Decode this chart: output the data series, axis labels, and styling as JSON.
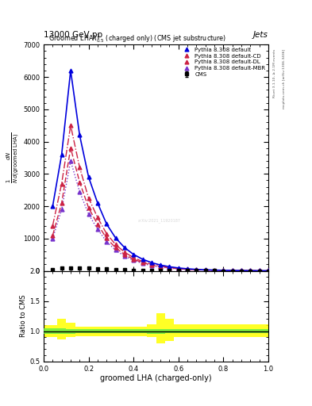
{
  "title_top": "13000 GeV pp",
  "title_right": "Jets",
  "plot_title": "Groomed LHA$\\lambda^{1}_{0.5}$ (charged only) (CMS jet substructure)",
  "xlabel": "groomed LHA (charged-only)",
  "ylabel_ratio": "Ratio to CMS",
  "right_label1": "Rivet 3.1.10, ≥ 2.1M events",
  "right_label2": "mcplots.cern.ch [arXiv:1306.3436]",
  "watermark": "arXiv:2021_11920187",
  "xlim": [
    0,
    1
  ],
  "ylim_main": [
    0,
    7000
  ],
  "ylim_ratio": [
    0.5,
    2.0
  ],
  "x_data": [
    0.04,
    0.08,
    0.12,
    0.16,
    0.2,
    0.24,
    0.28,
    0.32,
    0.36,
    0.4,
    0.44,
    0.48,
    0.52,
    0.56,
    0.6,
    0.64,
    0.68,
    0.72,
    0.76,
    0.8,
    0.84,
    0.88,
    0.92,
    0.96,
    1.0
  ],
  "default_data": [
    2000,
    3600,
    6200,
    4200,
    2900,
    2100,
    1450,
    1020,
    720,
    510,
    360,
    255,
    180,
    128,
    90,
    64,
    46,
    33,
    23,
    17,
    12,
    9,
    6,
    5,
    3
  ],
  "cd_data": [
    1400,
    2700,
    4500,
    3200,
    2250,
    1650,
    1150,
    815,
    578,
    410,
    290,
    205,
    146,
    104,
    74,
    53,
    38,
    27,
    20,
    14,
    10,
    8,
    6,
    4,
    3
  ],
  "dl_data": [
    1100,
    2100,
    3800,
    2750,
    1950,
    1440,
    1010,
    715,
    507,
    360,
    255,
    181,
    129,
    92,
    66,
    47,
    34,
    24,
    18,
    13,
    9,
    7,
    5,
    4,
    3
  ],
  "mbr_data": [
    1000,
    1900,
    3400,
    2450,
    1750,
    1290,
    905,
    642,
    456,
    324,
    230,
    163,
    116,
    83,
    60,
    43,
    31,
    22,
    16,
    12,
    9,
    6,
    5,
    3,
    2
  ],
  "cms_x": [
    0.04,
    0.08,
    0.12,
    0.16,
    0.2,
    0.24,
    0.28,
    0.32,
    0.36,
    0.4,
    0.44,
    0.48,
    0.52,
    0.56,
    0.6,
    0.64,
    0.68,
    0.72,
    0.76,
    0.8,
    0.84,
    0.88,
    0.92,
    0.96,
    1.0
  ],
  "cms_data": [
    50,
    80,
    100,
    100,
    90,
    75,
    60,
    45,
    35,
    25,
    18,
    13,
    9,
    7,
    5,
    4,
    3,
    2,
    2,
    1,
    1,
    1,
    1,
    1,
    0
  ],
  "cms_err": [
    10,
    15,
    15,
    15,
    12,
    10,
    8,
    6,
    5,
    4,
    3,
    2,
    2,
    1,
    1,
    1,
    1,
    1,
    0,
    0,
    0,
    0,
    0,
    0,
    0
  ],
  "yticks_main": [
    0,
    1000,
    2000,
    3000,
    4000,
    5000,
    6000,
    7000
  ],
  "color_default": "#0000dd",
  "color_cd": "#cc2244",
  "color_dl": "#cc2244",
  "color_mbr": "#7733cc",
  "color_cms": "black",
  "legend_labels": [
    "CMS",
    "Pythia 8.308 default",
    "Pythia 8.308 default-CD",
    "Pythia 8.308 default-DL",
    "Pythia 8.308 default-MBR"
  ],
  "yellow_x_edges": [
    0.0,
    0.06,
    0.1,
    0.14,
    0.3,
    0.46,
    0.5,
    0.54,
    0.58,
    1.0
  ],
  "yellow_lo": [
    0.9,
    0.86,
    0.9,
    0.92,
    0.92,
    0.9,
    0.8,
    0.84,
    0.9,
    0.92
  ],
  "yellow_hi": [
    1.1,
    1.2,
    1.14,
    1.08,
    1.08,
    1.12,
    1.3,
    1.2,
    1.12,
    1.08
  ],
  "green_x_edges": [
    0.0,
    0.06,
    0.1,
    0.14,
    0.3,
    0.46,
    0.5,
    0.54,
    0.58,
    1.0
  ],
  "green_lo": [
    0.95,
    0.95,
    0.96,
    0.97,
    0.97,
    0.96,
    0.96,
    0.97,
    0.97,
    0.98
  ],
  "green_hi": [
    1.05,
    1.05,
    1.04,
    1.03,
    1.03,
    1.04,
    1.04,
    1.03,
    1.03,
    1.02
  ]
}
